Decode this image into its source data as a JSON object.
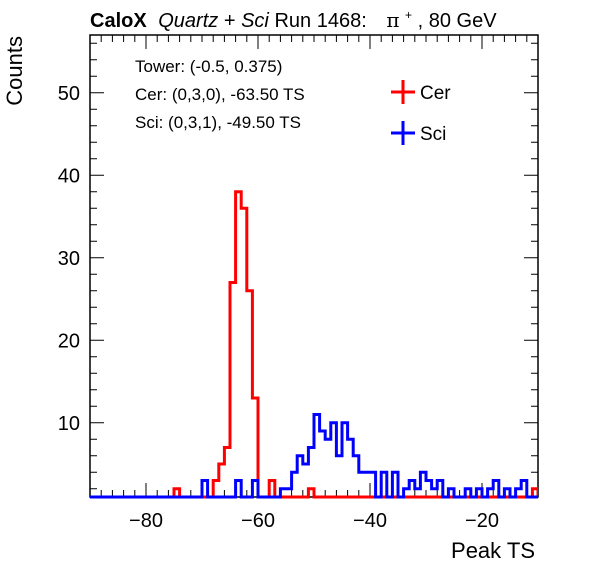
{
  "chart_data": {
    "type": "histogram-step",
    "title": {
      "brand": "CaloX",
      "setup_part1": "Quartz",
      "setup_plus": " + ",
      "setup_part2": "Sci",
      "run": " Run 1468:",
      "particle": "π",
      "charge": "+",
      "energy": ", 80 GeV"
    },
    "xlabel": "Peak TS",
    "ylabel": "Counts",
    "xlim": [
      -90,
      -10
    ],
    "ylim": [
      1,
      57
    ],
    "xticks": [
      -80,
      -60,
      -40,
      -20
    ],
    "yticks": [
      10,
      20,
      30,
      40,
      50
    ],
    "annotations": [
      "Tower: (-0.5, 0.375)",
      "Cer: (0,3,0), -63.50 TS",
      "Sci: (0,3,1), -49.50 TS"
    ],
    "legend": {
      "placement": "top-right"
    },
    "series": [
      {
        "name": "Cer",
        "color": "#ff0000",
        "bins": [
          [
            -75,
            2
          ],
          [
            -68,
            3
          ],
          [
            -67,
            5
          ],
          [
            -66,
            7
          ],
          [
            -65,
            27
          ],
          [
            -64,
            38
          ],
          [
            -63,
            36
          ],
          [
            -62,
            26
          ],
          [
            -61,
            13
          ],
          [
            -58,
            3
          ],
          [
            -51,
            2
          ],
          [
            -11,
            2
          ]
        ]
      },
      {
        "name": "Sci",
        "color": "#0000ff",
        "bins": [
          [
            -70,
            3
          ],
          [
            -64,
            3
          ],
          [
            -61,
            3
          ],
          [
            -56,
            2
          ],
          [
            -55,
            2
          ],
          [
            -54,
            4
          ],
          [
            -53,
            6
          ],
          [
            -52,
            5
          ],
          [
            -51,
            7
          ],
          [
            -50,
            11
          ],
          [
            -49,
            9
          ],
          [
            -48,
            8
          ],
          [
            -47,
            10
          ],
          [
            -46,
            6
          ],
          [
            -45,
            10
          ],
          [
            -44,
            8
          ],
          [
            -43,
            6
          ],
          [
            -42,
            4
          ],
          [
            -41,
            4
          ],
          [
            -40,
            4
          ],
          [
            -38,
            4
          ],
          [
            -36,
            4
          ],
          [
            -34,
            2
          ],
          [
            -33,
            3
          ],
          [
            -32,
            2
          ],
          [
            -31,
            4
          ],
          [
            -30,
            3
          ],
          [
            -29,
            2
          ],
          [
            -28,
            3
          ],
          [
            -26,
            2
          ],
          [
            -23,
            2
          ],
          [
            -21,
            2
          ],
          [
            -19,
            2
          ],
          [
            -18,
            3
          ],
          [
            -16,
            2
          ],
          [
            -14,
            2
          ],
          [
            -13,
            3
          ]
        ]
      }
    ]
  }
}
